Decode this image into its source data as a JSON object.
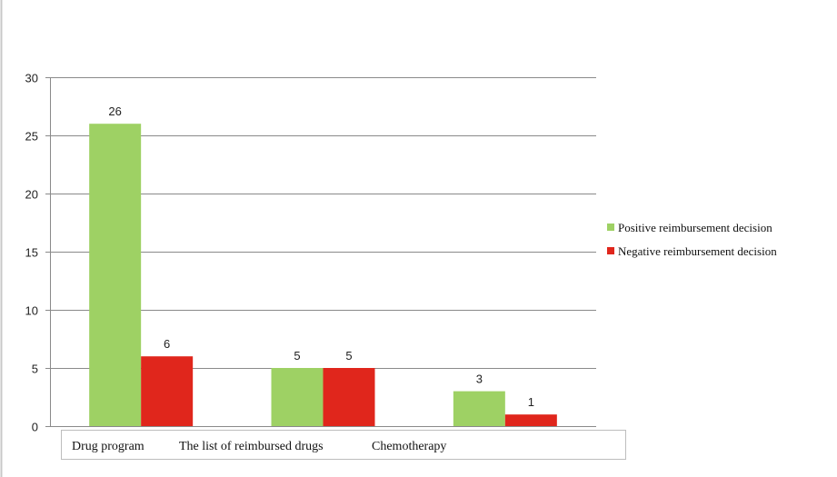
{
  "chart_data": {
    "type": "bar",
    "title": "",
    "xlabel": "",
    "ylabel": "",
    "categories": [
      "Drug program",
      "The list of reimbursed drugs",
      "Chemotherapy"
    ],
    "series": [
      {
        "name": "Positive reimbursement decision",
        "values": [
          26,
          5,
          3
        ],
        "color": "#9ed164"
      },
      {
        "name": "Negative reimbursement decision",
        "values": [
          6,
          5,
          1
        ],
        "color": "#e0261c"
      }
    ],
    "ylim": [
      0,
      30
    ],
    "yticks": [
      0,
      5,
      10,
      15,
      20,
      25,
      30
    ],
    "grid": true,
    "legend": "right",
    "data_labels": true
  }
}
